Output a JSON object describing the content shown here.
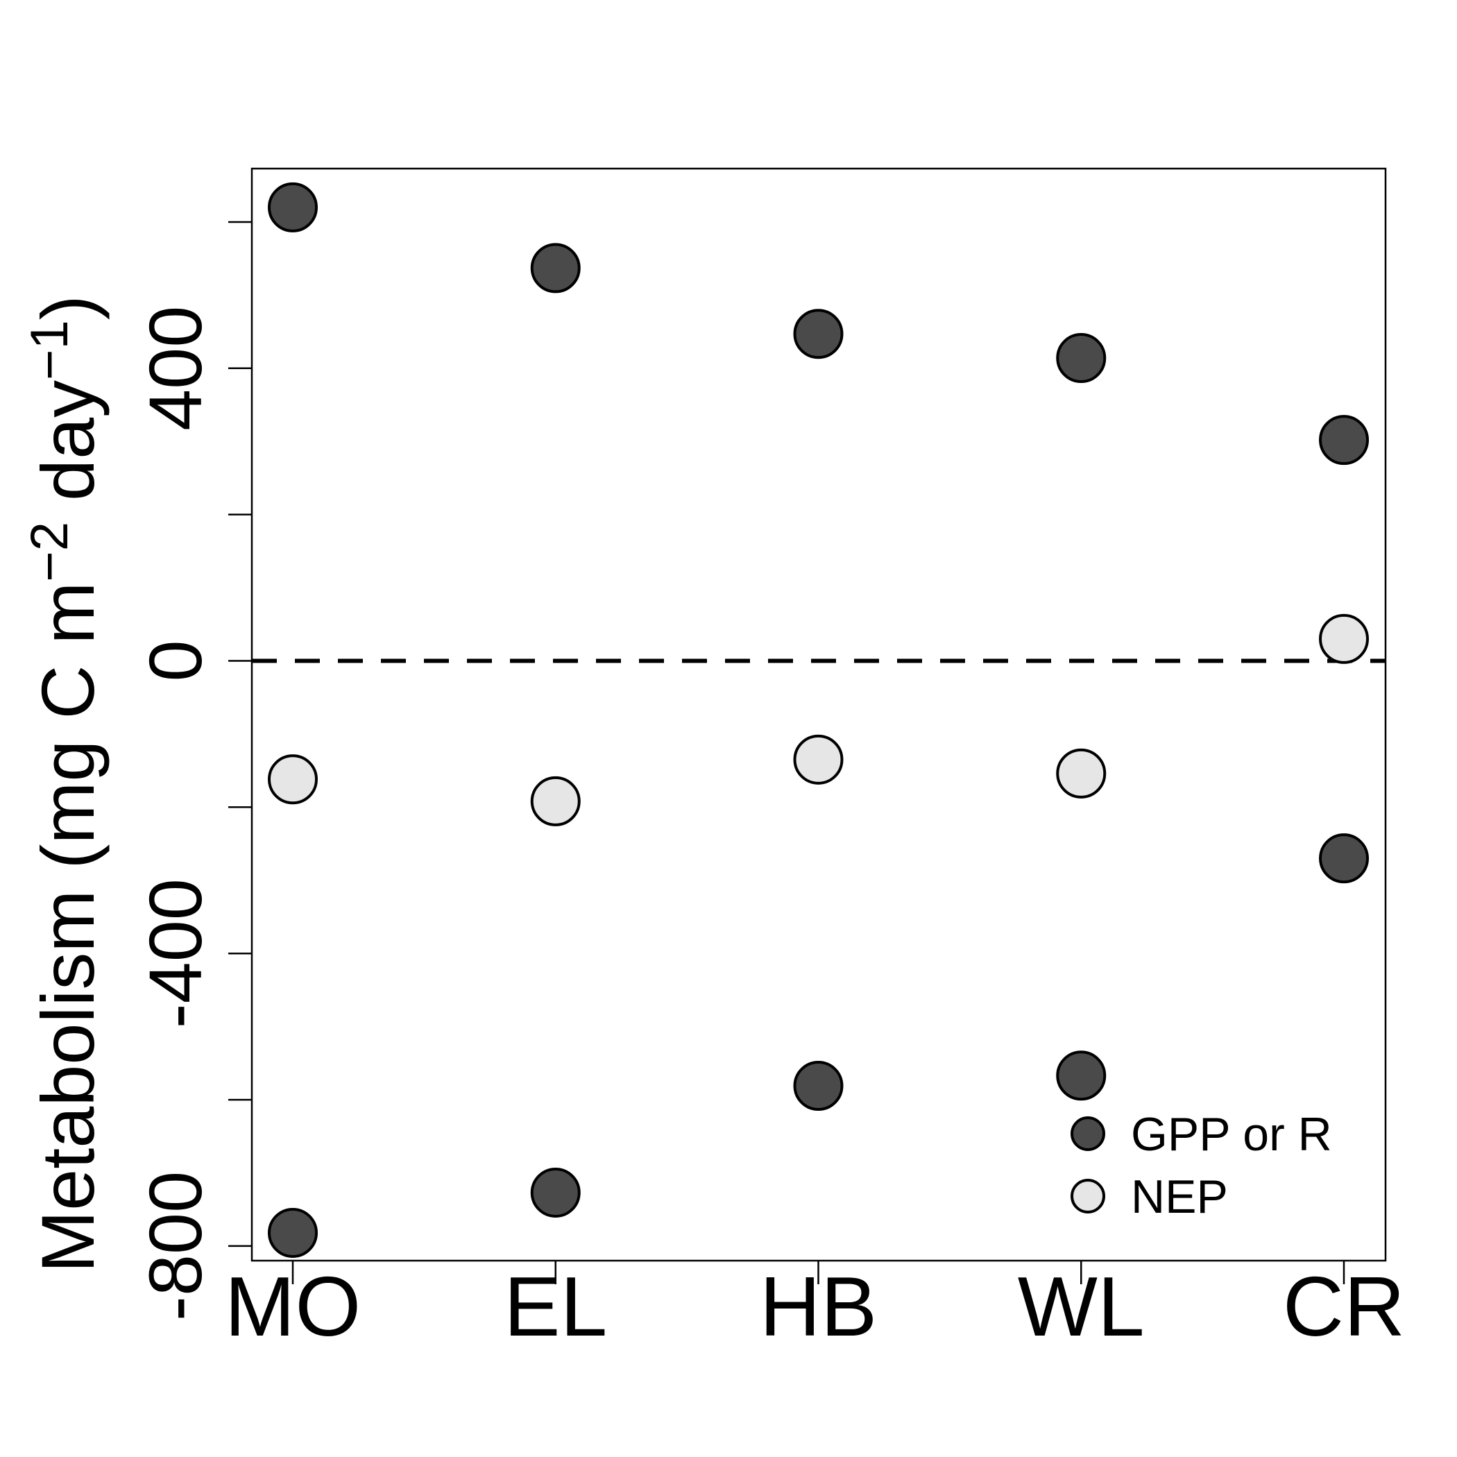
{
  "chart_data": {
    "type": "scatter",
    "categories": [
      "MO",
      "EL",
      "HB",
      "WL",
      "CR"
    ],
    "series": [
      {
        "name": "GPP or R",
        "color": "#4a4a4a",
        "points": [
          {
            "x": "MO",
            "y": 620
          },
          {
            "x": "EL",
            "y": 537
          },
          {
            "x": "HB",
            "y": 447
          },
          {
            "x": "WL",
            "y": 414
          },
          {
            "x": "CR",
            "y": 302
          },
          {
            "x": "MO",
            "y": -782
          },
          {
            "x": "EL",
            "y": -727
          },
          {
            "x": "HB",
            "y": -581
          },
          {
            "x": "WL",
            "y": -567
          },
          {
            "x": "CR",
            "y": -270
          }
        ]
      },
      {
        "name": "NEP",
        "color": "#e6e6e6",
        "points": [
          {
            "x": "MO",
            "y": -162
          },
          {
            "x": "EL",
            "y": -192
          },
          {
            "x": "HB",
            "y": -135
          },
          {
            "x": "WL",
            "y": -154
          },
          {
            "x": "CR",
            "y": 30
          }
        ]
      }
    ],
    "ylabel": "Metabolism (mg C m−2 day−1)",
    "ylabel_parts": {
      "open": "Metabolism (mg C m",
      "sup1": "−2",
      "mid": " day",
      "sup2": "−1",
      "close": ")"
    },
    "xlabel": "",
    "ylim": [
      -820,
      673
    ],
    "yticks": [
      -800,
      -600,
      -400,
      -200,
      0,
      200,
      400,
      600
    ],
    "yticklabels": [
      "-800",
      "",
      "-400",
      "",
      "0",
      "",
      "400",
      ""
    ],
    "reference_line": {
      "y": 0,
      "style": "dashed"
    },
    "legend": {
      "position": "bottom-right",
      "entries": [
        "GPP or R",
        "NEP"
      ]
    },
    "grid": false
  }
}
